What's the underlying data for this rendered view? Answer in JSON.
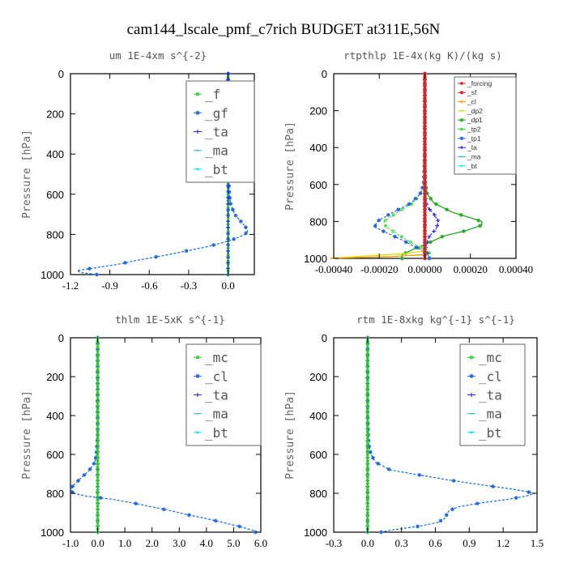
{
  "title": "cam144_lscale_pmf_c7rich  BUDGET at311E,56N",
  "chart_data": [
    {
      "type": "line",
      "title": "um   1E-4xm s^{-2}",
      "ylabel": "Pressure [hPa]",
      "xlim": [
        -1.2,
        0.2
      ],
      "ylim": [
        1000,
        0
      ],
      "xticks": [
        -1.2,
        -0.9,
        -0.6,
        -0.3,
        0.0
      ],
      "xtick_labels": [
        "-1.2",
        "-0.9",
        "-0.6",
        "-0.3",
        "0.0"
      ],
      "yticks": [
        0,
        200,
        400,
        600,
        800,
        1000
      ],
      "ytick_labels": [
        "0",
        "200",
        "400",
        "600",
        "800",
        "1000"
      ],
      "legend": {
        "placement": "top-right",
        "style": "big",
        "entries": [
          {
            "label": "_f",
            "color": "#22cc22",
            "marker": "circle"
          },
          {
            "label": "_gf",
            "color": "#2266dd",
            "marker": "star"
          },
          {
            "label": "_ta",
            "color": "#2222ff",
            "marker": "plus"
          },
          {
            "label": "_ma",
            "color": "#33bbcc",
            "marker": "dash"
          },
          {
            "label": "_bt",
            "color": "#00e0ff",
            "marker": "dot"
          }
        ]
      },
      "series": [
        {
          "color": "#22cc22",
          "dash": false,
          "marker": "circle",
          "density": 60,
          "y": [
            0,
            1000
          ],
          "x": [
            0.0,
            0.0
          ]
        },
        {
          "color": "#00e0ff",
          "dash": true,
          "marker": "dot",
          "y": [
            0,
            100,
            200,
            300,
            400,
            500,
            600,
            650,
            700,
            730,
            760,
            780,
            800,
            830,
            860,
            900,
            930,
            950,
            970,
            980,
            990,
            1000
          ],
          "x": [
            0.0,
            0.0,
            0.0,
            0.0,
            0.0,
            0.0,
            0.01,
            0.02,
            0.05,
            0.09,
            0.13,
            0.15,
            0.13,
            0.02,
            -0.15,
            -0.45,
            -0.7,
            -0.85,
            -1.05,
            -1.15,
            -1.12,
            -1.0
          ]
        },
        {
          "color": "#2266dd",
          "dash": true,
          "marker": "star",
          "y": [
            0,
            100,
            200,
            300,
            400,
            500,
            600,
            650,
            700,
            730,
            760,
            780,
            800,
            830,
            860,
            900,
            930,
            950,
            970,
            980,
            990,
            1000
          ],
          "x": [
            0.0,
            0.0,
            0.0,
            0.0,
            0.0,
            0.0,
            0.01,
            0.02,
            0.05,
            0.09,
            0.13,
            0.15,
            0.13,
            0.02,
            -0.15,
            -0.45,
            -0.7,
            -0.85,
            -1.05,
            -1.15,
            -1.12,
            -1.0
          ]
        },
        {
          "color": "#2222ff",
          "dash": true,
          "marker": "plus",
          "y": [
            0,
            1000
          ],
          "x": [
            0.0,
            0.0
          ]
        }
      ]
    },
    {
      "type": "line",
      "title": "rtpthlp   1E-4x(kg K)/(kg s)",
      "ylabel": "Pressure [hPa]",
      "xlim": [
        -0.0004,
        0.0004
      ],
      "ylim": [
        1000,
        0
      ],
      "xticks": [
        -0.0004,
        -0.0002,
        0.0,
        0.0002,
        0.0004
      ],
      "xtick_labels": [
        "-0.00040",
        "-0.00020",
        "0.00000",
        "0.00020",
        "0.00040"
      ],
      "yticks": [
        0,
        200,
        400,
        600,
        800,
        1000
      ],
      "ytick_labels": [
        "0",
        "200",
        "400",
        "600",
        "800",
        "1000"
      ],
      "legend": {
        "placement": "top-right",
        "style": "small",
        "entries": [
          {
            "label": "_forcing",
            "color": "#cc2222",
            "marker": "circle"
          },
          {
            "label": "_sf",
            "color": "#dd2222",
            "marker": "star"
          },
          {
            "label": "_cl",
            "color": "#ee9900",
            "marker": "plus"
          },
          {
            "label": "_dp2",
            "color": "#dddd00",
            "marker": "dash"
          },
          {
            "label": "_dp1",
            "color": "#22aa22",
            "marker": "star"
          },
          {
            "label": "_tp2",
            "color": "#44dd44",
            "marker": "circle"
          },
          {
            "label": "_tp1",
            "color": "#2266dd",
            "marker": "star"
          },
          {
            "label": "_ta",
            "color": "#2222ff",
            "marker": "plus"
          },
          {
            "label": "_ma",
            "color": "#33bbcc",
            "marker": "dash"
          },
          {
            "label": "_bt",
            "color": "#00e0ff",
            "marker": "dot"
          }
        ]
      },
      "series": [
        {
          "color": "#22aa22",
          "dash": false,
          "marker": "star",
          "y": [
            0,
            200,
            400,
            500,
            600,
            650,
            700,
            750,
            780,
            800,
            820,
            850,
            880,
            920,
            950,
            980,
            1000
          ],
          "x": [
            0.0,
            0.0,
            0.0,
            0.0,
            3e-06,
            1e-05,
            4e-05,
            0.00012,
            0.0002,
            0.00025,
            0.00025,
            0.00018,
            8e-05,
            1e-05,
            -5e-05,
            -0.0001,
            -0.0001
          ]
        },
        {
          "color": "#44dd44",
          "dash": true,
          "marker": "circle",
          "y": [
            0,
            200,
            400,
            600,
            650,
            700,
            750,
            800,
            830,
            860,
            900,
            940,
            970,
            1000
          ],
          "x": [
            0.0,
            0.0,
            0.0,
            -5e-06,
            -2e-05,
            -5e-05,
            -0.00012,
            -0.00018,
            -0.00017,
            -0.00013,
            -8e-05,
            -2e-05,
            2e-05,
            2e-05
          ]
        },
        {
          "color": "#2266dd",
          "dash": true,
          "marker": "star",
          "y": [
            0,
            200,
            400,
            600,
            650,
            700,
            750,
            800,
            830,
            860,
            900,
            940,
            970,
            1000
          ],
          "x": [
            0.0,
            0.0,
            0.0,
            -5e-06,
            -2e-05,
            -6e-05,
            -0.00014,
            -0.00021,
            -0.00022,
            -0.00017,
            -0.0001,
            -4e-05,
            1e-05,
            2e-05
          ]
        },
        {
          "color": "#2222ff",
          "dash": true,
          "marker": "plus",
          "y": [
            0,
            600,
            680,
            720,
            760,
            800,
            840,
            880,
            930,
            970,
            1000
          ],
          "x": [
            0.0,
            0.0,
            5e-06,
            1e-05,
            4e-05,
            6e-05,
            5e-05,
            2e-05,
            5e-06,
            0.0,
            0.0
          ]
        },
        {
          "color": "#dddd00",
          "dash": false,
          "marker": "dash",
          "y": [
            960,
            975,
            990,
            1000
          ],
          "x": [
            0.0,
            -0.0001,
            -0.0003,
            -0.00042
          ]
        },
        {
          "color": "#ee9900",
          "dash": false,
          "marker": "plus",
          "y": [
            980,
            990,
            1000
          ],
          "x": [
            0.0,
            -0.00015,
            -0.00042
          ]
        },
        {
          "color": "#33bbcc",
          "dash": true,
          "marker": "dash",
          "y": [
            0,
            1000
          ],
          "x": [
            0.0,
            0.0
          ]
        },
        {
          "color": "#00e0ff",
          "dash": true,
          "marker": "dot",
          "y": [
            0,
            1000
          ],
          "x": [
            0.0,
            0.0
          ]
        },
        {
          "color": "#cc2222",
          "dash": false,
          "marker": "circle",
          "density": 60,
          "y": [
            0,
            1000
          ],
          "x": [
            0.0,
            0.0
          ]
        },
        {
          "color": "#dd2222",
          "dash": false,
          "marker": "star",
          "density": 60,
          "y": [
            0,
            1000
          ],
          "x": [
            0.0,
            0.0
          ]
        }
      ]
    },
    {
      "type": "line",
      "title": "thlm   1E-5xK s^{-1}",
      "ylabel": "Pressure [hPa]",
      "xlim": [
        -1.0,
        6.0
      ],
      "ylim": [
        1000,
        0
      ],
      "xticks": [
        -1.0,
        0.0,
        1.0,
        2.0,
        3.0,
        4.0,
        5.0,
        6.0
      ],
      "xtick_labels": [
        "-1.0",
        "0.0",
        "1.0",
        "2.0",
        "3.0",
        "4.0",
        "5.0",
        "6.0"
      ],
      "yticks": [
        0,
        200,
        400,
        600,
        800,
        1000
      ],
      "ytick_labels": [
        "0",
        "200",
        "400",
        "600",
        "800",
        "1000"
      ],
      "legend": {
        "placement": "top-right",
        "style": "big",
        "entries": [
          {
            "label": "_mc",
            "color": "#22cc22",
            "marker": "circle"
          },
          {
            "label": "_cl",
            "color": "#2266dd",
            "marker": "star"
          },
          {
            "label": "_ta",
            "color": "#2222ff",
            "marker": "plus"
          },
          {
            "label": "_ma",
            "color": "#33bbcc",
            "marker": "dash"
          },
          {
            "label": "_bt",
            "color": "#00e0ff",
            "marker": "dot"
          }
        ]
      },
      "series": [
        {
          "color": "#00e0ff",
          "dash": true,
          "marker": "dot",
          "y": [
            0,
            200,
            400,
            500,
            600,
            640,
            680,
            720,
            760,
            780,
            800,
            815,
            830,
            850,
            870,
            890,
            910,
            930,
            950,
            970,
            990,
            1000
          ],
          "x": [
            0.0,
            0.0,
            0.0,
            0.0,
            -0.05,
            -0.1,
            -0.3,
            -0.6,
            -0.9,
            -1.0,
            -0.9,
            -0.4,
            0.5,
            1.3,
            2.0,
            2.7,
            3.3,
            4.0,
            4.6,
            5.2,
            5.7,
            5.8
          ]
        },
        {
          "color": "#2266dd",
          "dash": true,
          "marker": "star",
          "y": [
            0,
            200,
            400,
            500,
            600,
            640,
            680,
            720,
            760,
            780,
            800,
            815,
            830,
            850,
            870,
            890,
            910,
            930,
            950,
            970,
            990,
            1000
          ],
          "x": [
            0.0,
            0.0,
            0.0,
            0.0,
            -0.05,
            -0.1,
            -0.3,
            -0.6,
            -0.9,
            -1.0,
            -0.9,
            -0.4,
            0.5,
            1.3,
            2.0,
            2.7,
            3.3,
            4.0,
            4.6,
            5.2,
            5.7,
            5.8
          ]
        },
        {
          "color": "#2222ff",
          "dash": true,
          "marker": "plus",
          "y": [
            0,
            1000
          ],
          "x": [
            0.0,
            0.0
          ]
        },
        {
          "color": "#22cc22",
          "dash": false,
          "marker": "circle",
          "density": 60,
          "y": [
            0,
            1000
          ],
          "x": [
            0.0,
            0.0
          ]
        }
      ]
    },
    {
      "type": "line",
      "title": "rtm   1E-8xkg kg^{-1} s^{-1}",
      "ylabel": "Pressure [hPa]",
      "xlim": [
        -0.3,
        1.5
      ],
      "ylim": [
        1000,
        0
      ],
      "xticks": [
        -0.3,
        0.0,
        0.3,
        0.6,
        0.9,
        1.2,
        1.5
      ],
      "xtick_labels": [
        "-0.3",
        "0.0",
        "0.3",
        "0.6",
        "0.9",
        "1.2",
        "1.5"
      ],
      "yticks": [
        0,
        200,
        400,
        600,
        800,
        1000
      ],
      "ytick_labels": [
        "0",
        "200",
        "400",
        "600",
        "800",
        "1000"
      ],
      "legend": {
        "placement": "top-right",
        "style": "big",
        "entries": [
          {
            "label": "_mc",
            "color": "#22cc22",
            "marker": "circle"
          },
          {
            "label": "_cl",
            "color": "#2266dd",
            "marker": "star"
          },
          {
            "label": "_ta",
            "color": "#2222ff",
            "marker": "plus"
          },
          {
            "label": "_ma",
            "color": "#33bbcc",
            "marker": "dash"
          },
          {
            "label": "_bt",
            "color": "#00e0ff",
            "marker": "dot"
          }
        ]
      },
      "series": [
        {
          "color": "#00e0ff",
          "dash": true,
          "marker": "dot",
          "y": [
            0,
            200,
            400,
            550,
            600,
            640,
            680,
            700,
            730,
            760,
            780,
            800,
            815,
            830,
            850,
            870,
            890,
            910,
            930,
            950,
            970,
            990,
            1000
          ],
          "x": [
            0.0,
            0.0,
            0.0,
            0.01,
            0.03,
            0.07,
            0.2,
            0.4,
            0.7,
            1.05,
            1.3,
            1.48,
            1.4,
            1.25,
            1.0,
            0.8,
            0.72,
            0.7,
            0.68,
            0.62,
            0.45,
            0.2,
            0.12
          ]
        },
        {
          "color": "#2266dd",
          "dash": true,
          "marker": "star",
          "y": [
            0,
            200,
            400,
            550,
            600,
            640,
            680,
            700,
            730,
            760,
            780,
            800,
            815,
            830,
            850,
            870,
            890,
            910,
            930,
            950,
            970,
            990,
            1000
          ],
          "x": [
            0.0,
            0.0,
            0.0,
            0.01,
            0.03,
            0.07,
            0.2,
            0.4,
            0.7,
            1.05,
            1.3,
            1.48,
            1.4,
            1.25,
            1.0,
            0.8,
            0.72,
            0.7,
            0.68,
            0.62,
            0.45,
            0.2,
            0.12
          ]
        },
        {
          "color": "#2222ff",
          "dash": true,
          "marker": "plus",
          "y": [
            0,
            1000
          ],
          "x": [
            0.0,
            0.0
          ]
        },
        {
          "color": "#22cc22",
          "dash": false,
          "marker": "circle",
          "density": 60,
          "y": [
            0,
            1000
          ],
          "x": [
            0.0,
            0.0
          ]
        }
      ]
    }
  ]
}
